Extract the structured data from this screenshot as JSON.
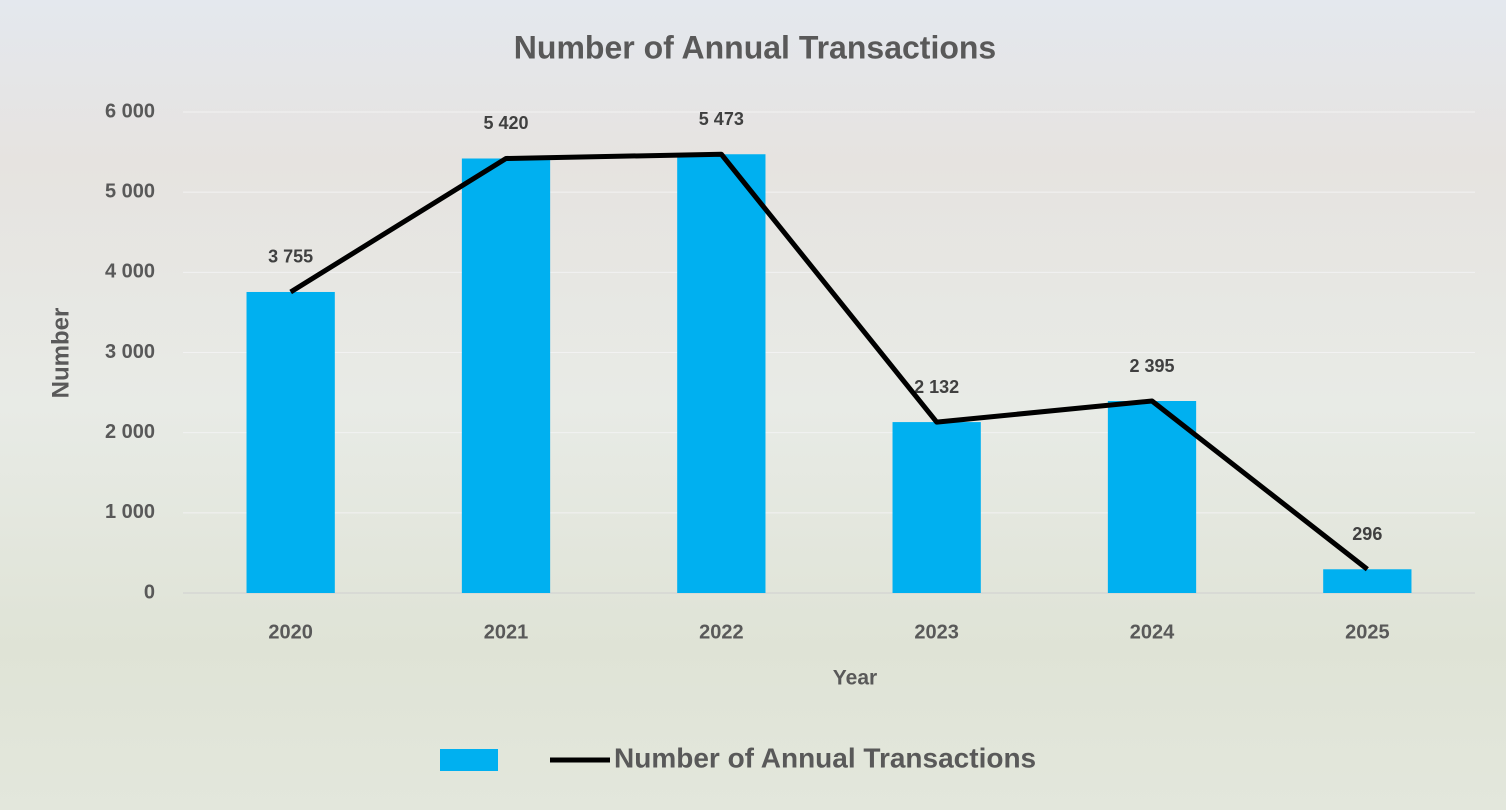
{
  "chart_data": {
    "type": "bar",
    "title": "Number of Annual Transactions",
    "x_label": "Year",
    "y_label": "Number",
    "categories": [
      "2020",
      "2021",
      "2022",
      "2023",
      "2024",
      "2025"
    ],
    "series": [
      {
        "type": "bar",
        "color": "#00b0f0",
        "values": [
          3755,
          5420,
          5473,
          2132,
          2395,
          296
        ],
        "value_labels": [
          "3 755",
          "5 420",
          "5 473",
          "2 132",
          "2 395",
          "296"
        ]
      },
      {
        "type": "line",
        "name": "Number of Annual Transactions",
        "color": "#000000",
        "values": [
          3755,
          5420,
          5473,
          2132,
          2395,
          296
        ]
      }
    ],
    "ylim": [
      0,
      6000
    ],
    "yticks": [
      {
        "value": 0,
        "label": "0"
      },
      {
        "value": 1000,
        "label": "1 000"
      },
      {
        "value": 2000,
        "label": "2 000"
      },
      {
        "value": 3000,
        "label": "3 000"
      },
      {
        "value": 4000,
        "label": "4 000"
      },
      {
        "value": 5000,
        "label": "5 000"
      },
      {
        "value": 6000,
        "label": "6 000"
      }
    ],
    "grid": true,
    "legend": "bottom"
  }
}
